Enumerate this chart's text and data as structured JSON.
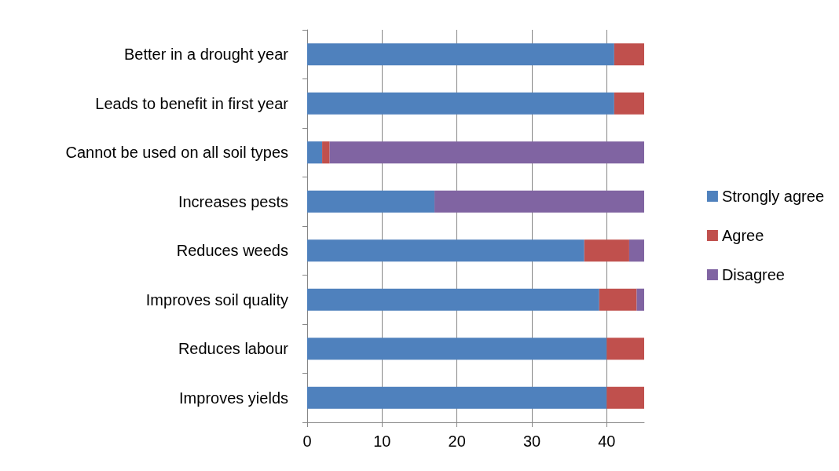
{
  "chart_data": {
    "type": "bar",
    "orientation": "horizontal",
    "stacked": true,
    "categories": [
      "Better in a drought year",
      "Leads to benefit in first year",
      "Cannot be used on all soil types",
      "Increases pests",
      "Reduces weeds",
      "Improves soil quality",
      "Reduces labour",
      "Improves yields"
    ],
    "series": [
      {
        "name": "Strongly agree",
        "color": "#4f81bd",
        "values": [
          41,
          41,
          2,
          17,
          37,
          39,
          40,
          40
        ]
      },
      {
        "name": "Agree",
        "color": "#c0504d",
        "values": [
          4,
          4,
          1,
          0,
          6,
          5,
          5,
          5
        ]
      },
      {
        "name": "Disagree",
        "color": "#8064a2",
        "values": [
          0,
          0,
          42,
          28,
          2,
          1,
          0,
          0
        ]
      }
    ],
    "xlim": [
      0,
      45
    ],
    "xticks": [
      0,
      10,
      20,
      30,
      40
    ],
    "grid": "x",
    "legend": "right"
  }
}
